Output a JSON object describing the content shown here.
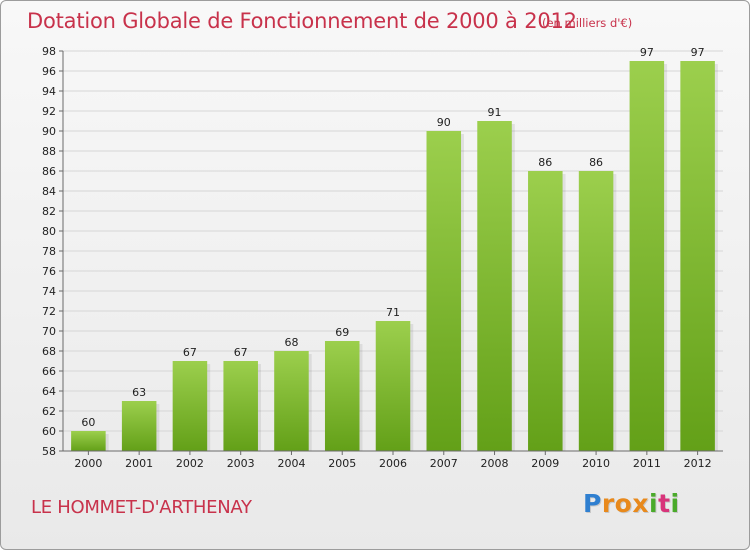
{
  "header": {
    "title": "Dotation Globale de Fonctionnement de 2000 à 2012",
    "subtitle": "(en milliers d'€)"
  },
  "footer": {
    "commune": "LE HOMMET-D'ARTHENAY",
    "logo_letters": [
      "P",
      "r",
      "o",
      "x",
      "i",
      "t",
      "i"
    ],
    "logo_colors": [
      "#2f7fd0",
      "#e8891c",
      "#e8891c",
      "#e8891c",
      "#4aaa2a",
      "#d8347a",
      "#4aaa2a"
    ]
  },
  "colors": {
    "bar_light": "#9ccf4d",
    "bar_dark": "#63a018",
    "grid": "#d6d6d6",
    "axis": "#6a6a6a",
    "accent": "#c8324b"
  },
  "chart_data": {
    "type": "bar",
    "title": "Dotation Globale de Fonctionnement de 2000 à 2012",
    "subtitle": "(en milliers d'€)",
    "categories": [
      "2000",
      "2001",
      "2002",
      "2003",
      "2004",
      "2005",
      "2006",
      "2007",
      "2008",
      "2009",
      "2010",
      "2011",
      "2012"
    ],
    "values": [
      60,
      63,
      67,
      67,
      68,
      69,
      71,
      90,
      91,
      86,
      86,
      97,
      97
    ],
    "ylim": [
      58,
      98
    ],
    "yticks": [
      58,
      60,
      62,
      64,
      66,
      68,
      70,
      72,
      74,
      76,
      78,
      80,
      82,
      84,
      86,
      88,
      90,
      92,
      94,
      96,
      98
    ],
    "grid": "horizontal",
    "xlabel": "",
    "ylabel": ""
  }
}
